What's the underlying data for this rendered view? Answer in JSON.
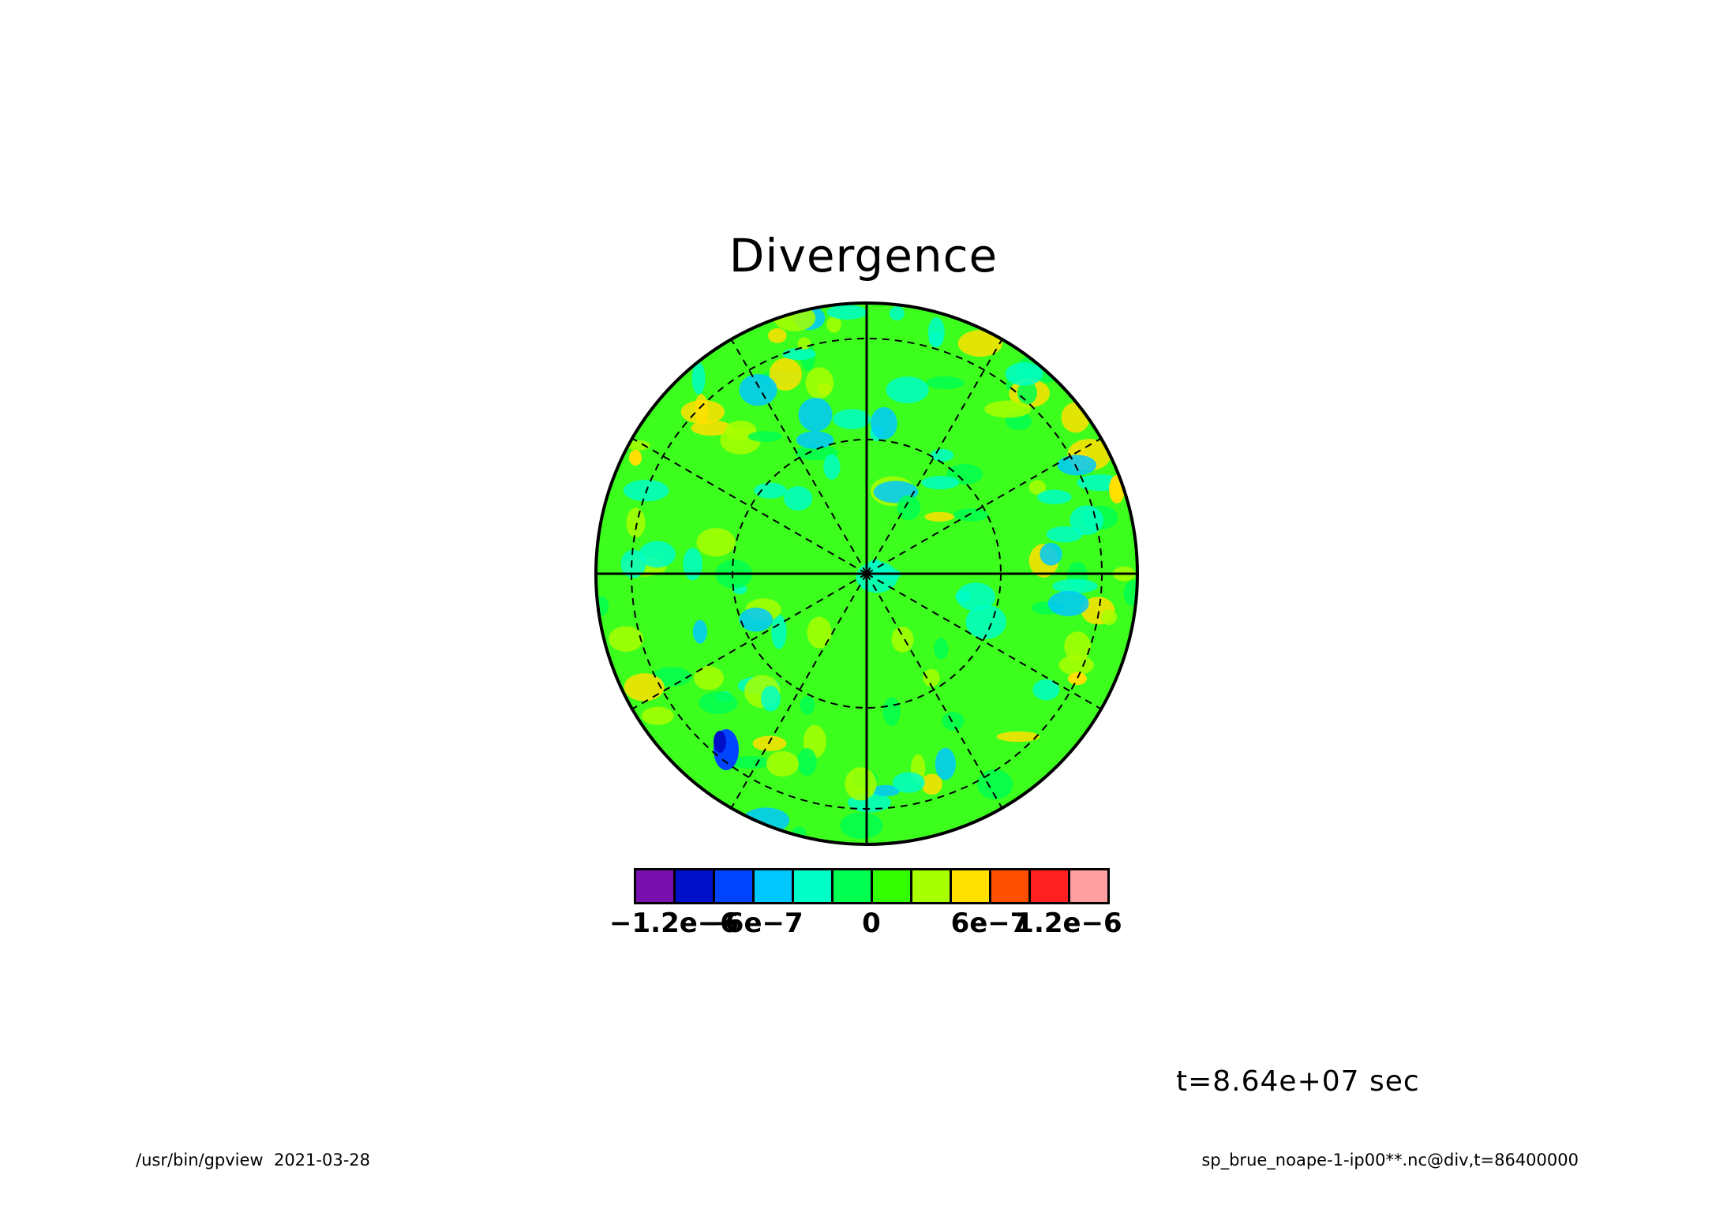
{
  "chart_data": {
    "type": "heatmap",
    "projection": "polar stereographic",
    "title": "Divergence",
    "colorbar": {
      "colors": [
        "#7a0fb0",
        "#0010c8",
        "#0044ff",
        "#00c8ff",
        "#00ffc8",
        "#00ff50",
        "#32ff00",
        "#a8ff00",
        "#ffe000",
        "#ff5000",
        "#ff2020",
        "#ffa0a0"
      ],
      "tick_labels": [
        "−1.2e−6",
        "−6e−7",
        "0",
        "6e−7",
        "1.2e−6"
      ],
      "tick_values": [
        -1.2e-06,
        -6e-07,
        0,
        6e-07,
        1.2e-06
      ]
    },
    "dominant_color": "#3cff1e",
    "grid": true
  },
  "time_label": "t=8.64e+07 sec",
  "footer": {
    "left": "/usr/bin/gpview  2021-03-28",
    "right": "sp_brue_noape-1-ip00**.nc@div,t=86400000"
  }
}
